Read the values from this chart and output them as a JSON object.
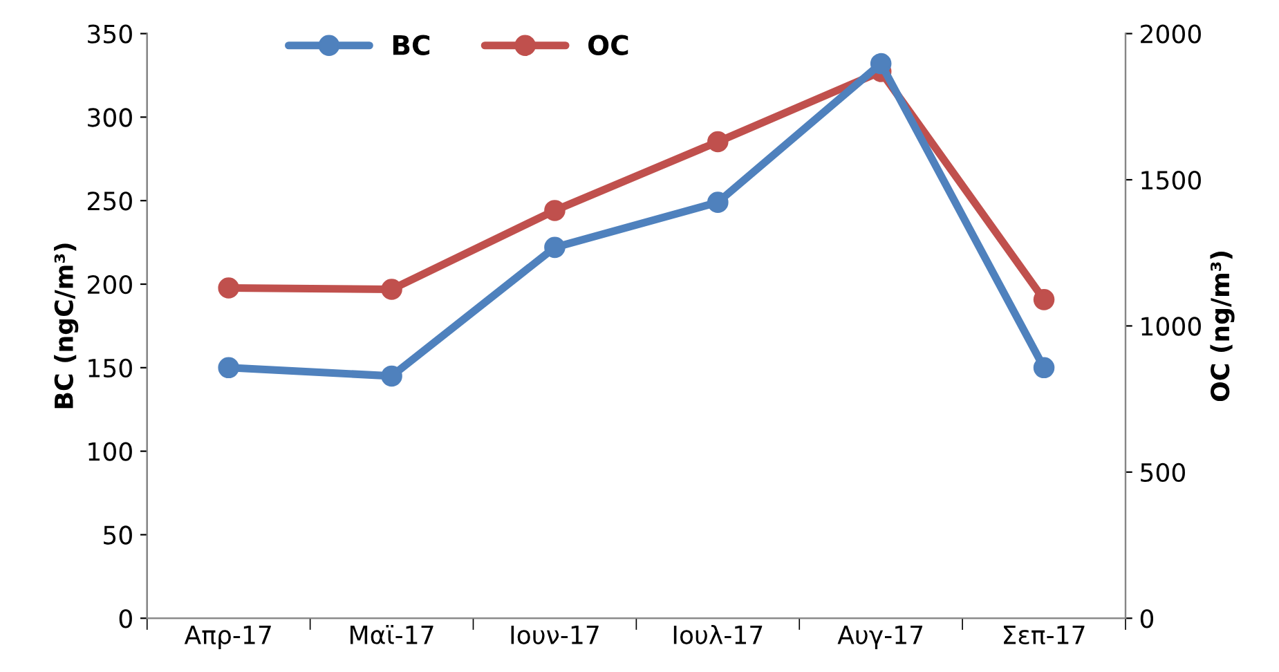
{
  "chart_data": {
    "type": "line",
    "categories": [
      "Απρ-17",
      "Μαϊ-17",
      "Ιουν-17",
      "Ιουλ-17",
      "Αυγ-17",
      "Σεπ-17"
    ],
    "series": [
      {
        "name": "BC",
        "color": "#4f81bd",
        "values": [
          150,
          145,
          222,
          249,
          332,
          150
        ]
      },
      {
        "name": "OC",
        "color": "#c0504d",
        "axis": "y2",
        "values": [
          1130,
          1125,
          1395,
          1630,
          1870,
          1090
        ]
      }
    ],
    "ylabel": "BC (ngC/m³)",
    "y2label": "OC (ng/m³)",
    "ylim": [
      0,
      350
    ],
    "yticks": [
      0,
      50,
      100,
      150,
      200,
      250,
      300,
      350
    ],
    "y2lim": [
      0,
      2000
    ],
    "y2ticks": [
      0,
      500,
      1000,
      1500,
      2000
    ],
    "marker": "circle",
    "line_style": "solid",
    "grid": false,
    "legend": "top left"
  }
}
